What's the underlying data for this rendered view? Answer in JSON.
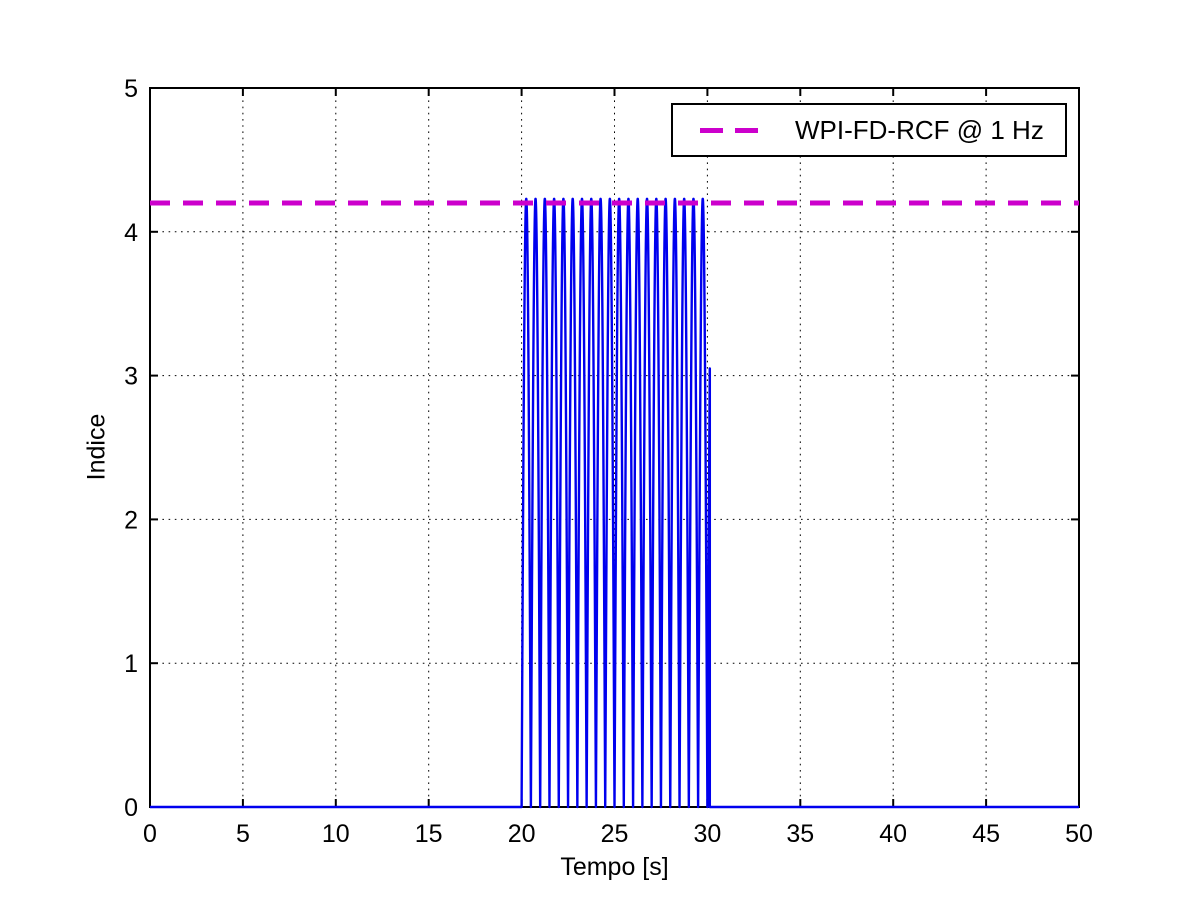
{
  "figure": {
    "background": "#ffffff"
  },
  "chart_data": {
    "type": "line",
    "title": "",
    "xlabel": "Tempo [s]",
    "ylabel": "Indice",
    "xlim": [
      0,
      50
    ],
    "ylim": [
      0,
      5
    ],
    "xticks": [
      0,
      5,
      10,
      15,
      20,
      25,
      30,
      35,
      40,
      45,
      50
    ],
    "yticks": [
      0,
      1,
      2,
      3,
      4,
      5
    ],
    "grid": {
      "style": "dotted",
      "color": "#000000"
    },
    "legend": {
      "position": "top-right",
      "entries": [
        {
          "label": "WPI-FD-RCF @ 1 Hz",
          "line_style": "dashed",
          "color": "#cc00cc"
        }
      ]
    },
    "series": [
      {
        "name": "indice-signal",
        "type": "line",
        "color": "#0000ee",
        "line_width": 2.4,
        "description": "Zero baseline from 0-20 s and 30-50 s; from 20 s to ~30.13 s a rectified 1 Hz sinusoid burst oscillating between 0 and 4.23 with ~20 narrow peaks (2 peaks per second); final partial peak truncated at ~3.05 just after 30 s with vertical drop to 0",
        "baseline_value": 0,
        "burst_start_s": 20,
        "burst_end_s": 30.13,
        "peak_value": 4.23,
        "peaks_per_second": 2,
        "final_partial_peak_value": 3.05
      },
      {
        "name": "threshold-line",
        "type": "hline",
        "label": "WPI-FD-RCF @ 1 Hz",
        "color": "#cc00cc",
        "line_style": "dashed",
        "line_width": 5,
        "value": 4.2
      }
    ]
  }
}
